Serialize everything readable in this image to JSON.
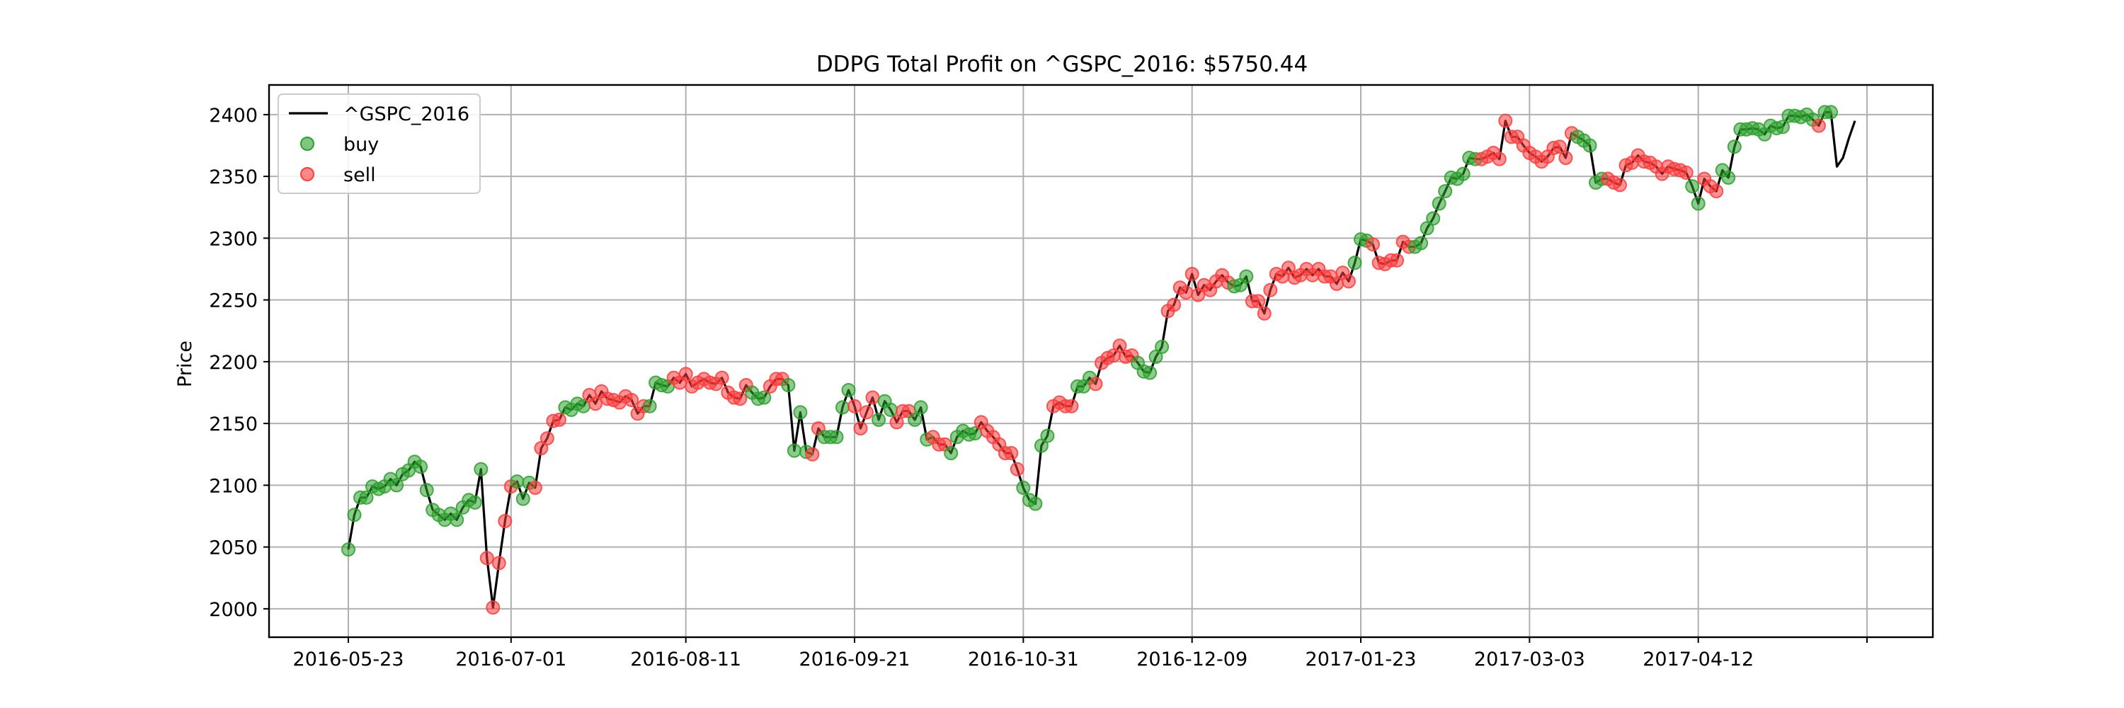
{
  "chart_data": {
    "type": "line",
    "title": "DDPG Total Profit on ^GSPC_2016: $5750.44",
    "xlabel": "",
    "ylabel": "Price",
    "ylim": [
      1977,
      2424
    ],
    "yticks": [
      2000,
      2050,
      2100,
      2150,
      2200,
      2250,
      2300,
      2350,
      2400
    ],
    "xticks": [
      {
        "label": "2016-05-23",
        "index": 0
      },
      {
        "label": "2016-07-01",
        "index": 27
      },
      {
        "label": "2016-08-11",
        "index": 56
      },
      {
        "label": "2016-09-21",
        "index": 84
      },
      {
        "label": "2016-10-31",
        "index": 112
      },
      {
        "label": "2016-12-09",
        "index": 140
      },
      {
        "label": "2017-01-23",
        "index": 168
      },
      {
        "label": "2017-03-03",
        "index": 196
      },
      {
        "label": "2017-04-12",
        "index": 224
      },
      {
        "label": "",
        "index": 252
      }
    ],
    "grid": true,
    "legend_position": "top-left",
    "series": [
      {
        "name": "^GSPC_2016",
        "color": "#000000",
        "kind": "line"
      },
      {
        "name": "buy",
        "color": "#2ca02c",
        "kind": "scatter"
      },
      {
        "name": "sell",
        "color": "#ff3b3b",
        "kind": "scatter"
      }
    ],
    "price": [
      2048,
      2076,
      2090,
      2090,
      2099,
      2097,
      2099,
      2105,
      2100,
      2109,
      2112,
      2119,
      2115,
      2096,
      2080,
      2076,
      2072,
      2077,
      2072,
      2082,
      2088,
      2086,
      2113,
      2041,
      2001,
      2037,
      2071,
      2099,
      2103,
      2089,
      2102,
      2098,
      2130,
      2138,
      2152,
      2153,
      2163,
      2161,
      2166,
      2164,
      2173,
      2166,
      2176,
      2170,
      2169,
      2167,
      2172,
      2169,
      2158,
      2164,
      2164,
      2183,
      2181,
      2180,
      2187,
      2183,
      2190,
      2180,
      2183,
      2186,
      2183,
      2182,
      2187,
      2175,
      2171,
      2170,
      2181,
      2175,
      2170,
      2171,
      2180,
      2186,
      2186,
      2181,
      2128,
      2159,
      2127,
      2125,
      2146,
      2139,
      2139,
      2139,
      2163,
      2177,
      2164,
      2146,
      2159,
      2171,
      2153,
      2168,
      2161,
      2151,
      2160,
      2160,
      2153,
      2163,
      2137,
      2139,
      2133,
      2133,
      2126,
      2139,
      2144,
      2141,
      2142,
      2151,
      2144,
      2139,
      2133,
      2126,
      2126,
      2113,
      2098,
      2088,
      2085,
      2132,
      2140,
      2164,
      2167,
      2164,
      2164,
      2180,
      2180,
      2187,
      2182,
      2199,
      2203,
      2205,
      2213,
      2204,
      2205,
      2199,
      2192,
      2191,
      2204,
      2212,
      2241,
      2246,
      2260,
      2256,
      2271,
      2254,
      2262,
      2258,
      2265,
      2270,
      2264,
      2261,
      2262,
      2269,
      2249,
      2249,
      2239,
      2258,
      2271,
      2269,
      2276,
      2268,
      2270,
      2275,
      2270,
      2275,
      2269,
      2269,
      2263,
      2272,
      2265,
      2280,
      2299,
      2298,
      2295,
      2280,
      2279,
      2282,
      2282,
      2297,
      2293,
      2293,
      2296,
      2308,
      2316,
      2328,
      2338,
      2349,
      2348,
      2352,
      2365,
      2364,
      2364,
      2366,
      2369,
      2364,
      2395,
      2382,
      2382,
      2375,
      2369,
      2366,
      2362,
      2366,
      2373,
      2374,
      2365,
      2385,
      2382,
      2379,
      2375,
      2345,
      2348,
      2348,
      2345,
      2343,
      2359,
      2361,
      2367,
      2362,
      2361,
      2358,
      2352,
      2358,
      2356,
      2355,
      2353,
      2342,
      2328,
      2348,
      2342,
      2338,
      2355,
      2349,
      2374,
      2388,
      2388,
      2389,
      2388,
      2384,
      2391,
      2389,
      2390,
      2399,
      2399,
      2398,
      2400,
      2396,
      2391,
      2402,
      2402,
      2358,
      2365,
      2381,
      2395
    ],
    "signals": "bbbbbbbbbbbbbbbbbbbbbbbsssssbbbsssssbbbbssssssssssbbbbsssssssssssssbbbsssbbbbssbbbbbssssbbbsssbbbsssbbbbbsssssssbbbbbssssbbbsssssssbbbbbsssssssssssbbbsssssssssssssssssbbbsssssssbbbbbbbbbbbssssssssssssssssbbbbbssssssssssssssbbsssbbbbbbbbbbbbbbbbsbb"
  }
}
